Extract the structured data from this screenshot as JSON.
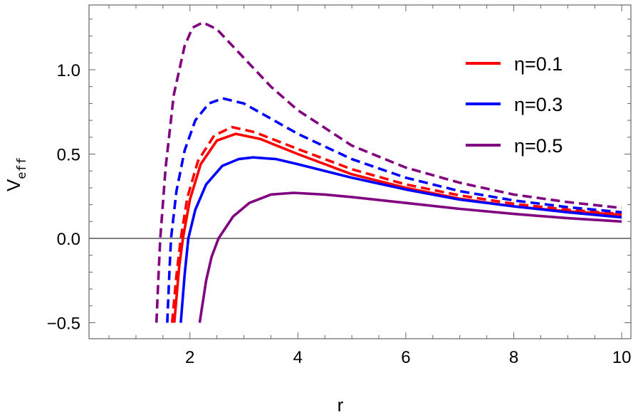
{
  "chart_data": {
    "type": "line",
    "title": "",
    "xlabel": "r",
    "ylabel": {
      "main": "V",
      "subscript": "eff"
    },
    "xlim": [
      0.13,
      10.17
    ],
    "ylim": [
      -0.595,
      1.384
    ],
    "x_ticks": [
      2,
      4,
      6,
      8,
      10
    ],
    "x_tick_labels": [
      "2",
      "4",
      "6",
      "8",
      "10"
    ],
    "y_ticks": [
      -0.5,
      0.0,
      0.5,
      1.0
    ],
    "y_tick_labels": [
      "-0.5",
      "0.0",
      "0.5",
      "1.0"
    ],
    "x_minor_step": 0.5,
    "y_minor_step": 0.1,
    "grid": false,
    "zero_line": true,
    "legend_position": "top-right",
    "legend": [
      {
        "label": "η=0.1",
        "color": "#FF0000"
      },
      {
        "label": "η=0.3",
        "color": "#0000FF"
      },
      {
        "label": "η=0.5",
        "color": "#800080"
      }
    ],
    "series": [
      {
        "name": "η=0.1",
        "color": "#FF0000",
        "style": "solid",
        "x": [
          1.71,
          1.8,
          1.87,
          2.0,
          2.2,
          2.5,
          2.85,
          3.3,
          4,
          5,
          6,
          7,
          8,
          9,
          10
        ],
        "y": [
          -0.5,
          -0.17,
          0,
          0.23,
          0.44,
          0.58,
          0.62,
          0.59,
          0.5,
          0.38,
          0.3,
          0.235,
          0.19,
          0.16,
          0.14
        ]
      },
      {
        "color": "#FF0000",
        "style": "dashed",
        "x": [
          1.67,
          1.75,
          1.83,
          1.95,
          2.15,
          2.45,
          2.78,
          3.2,
          4,
          5,
          6,
          7,
          8,
          9,
          10
        ],
        "y": [
          -0.5,
          -0.22,
          0,
          0.24,
          0.46,
          0.61,
          0.66,
          0.63,
          0.53,
          0.41,
          0.32,
          0.255,
          0.205,
          0.17,
          0.145
        ]
      },
      {
        "name": "η=0.3",
        "color": "#0000FF",
        "style": "solid",
        "x": [
          1.83,
          1.9,
          1.97,
          2.1,
          2.3,
          2.6,
          2.9,
          3.17,
          3.6,
          4,
          5,
          6,
          7,
          8,
          9,
          10
        ],
        "y": [
          -0.5,
          -0.22,
          0,
          0.17,
          0.32,
          0.43,
          0.47,
          0.48,
          0.47,
          0.44,
          0.36,
          0.29,
          0.23,
          0.19,
          0.155,
          0.125
        ]
      },
      {
        "color": "#0000FF",
        "style": "dashed",
        "x": [
          1.58,
          1.62,
          1.65,
          1.75,
          1.9,
          2.1,
          2.35,
          2.61,
          3,
          3.5,
          4,
          5,
          6,
          7,
          8,
          9,
          10
        ],
        "y": [
          -0.5,
          -0.2,
          0,
          0.28,
          0.52,
          0.7,
          0.8,
          0.83,
          0.8,
          0.71,
          0.62,
          0.47,
          0.36,
          0.28,
          0.225,
          0.185,
          0.155
        ]
      },
      {
        "name": "η=0.5",
        "color": "#800080",
        "style": "solid",
        "x": [
          2.18,
          2.3,
          2.4,
          2.53,
          2.8,
          3.1,
          3.5,
          3.92,
          4.5,
          5,
          6,
          7,
          8,
          9,
          10
        ],
        "y": [
          -0.5,
          -0.25,
          -0.11,
          0,
          0.13,
          0.21,
          0.26,
          0.27,
          0.26,
          0.245,
          0.21,
          0.175,
          0.145,
          0.12,
          0.1
        ]
      },
      {
        "color": "#800080",
        "style": "dashed",
        "x": [
          1.38,
          1.42,
          1.45,
          1.55,
          1.7,
          1.9,
          2.05,
          2.24,
          2.5,
          3,
          3.5,
          4,
          5,
          6,
          7,
          8,
          9,
          10
        ],
        "y": [
          -0.5,
          -0.2,
          0,
          0.42,
          0.85,
          1.14,
          1.25,
          1.28,
          1.24,
          1.07,
          0.9,
          0.76,
          0.55,
          0.42,
          0.33,
          0.26,
          0.215,
          0.18
        ]
      }
    ]
  }
}
